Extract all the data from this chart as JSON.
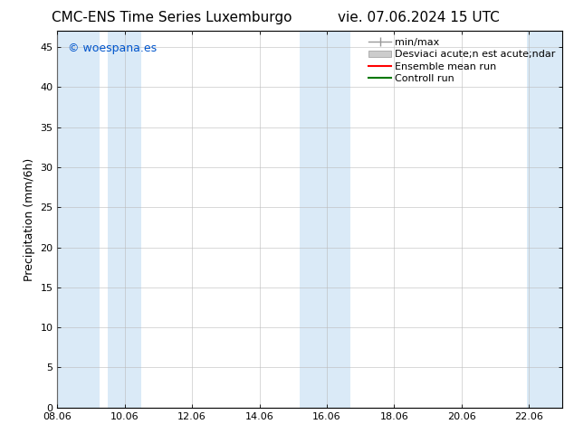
{
  "title_left": "CMC-ENS Time Series Luxemburgo",
  "title_right": "vie. 07.06.2024 15 UTC",
  "ylabel": "Precipitation (mm/6h)",
  "watermark": "© woespana.es",
  "watermark_color": "#0055cc",
  "xlim_left": 8.06,
  "xlim_right": 23.06,
  "ylim_bottom": 0,
  "ylim_top": 47,
  "xticks": [
    8.06,
    10.06,
    12.06,
    14.06,
    16.06,
    18.06,
    20.06,
    22.06
  ],
  "yticks": [
    0,
    5,
    10,
    15,
    20,
    25,
    30,
    35,
    40,
    45
  ],
  "background_color": "#ffffff",
  "plot_bg_color": "#ffffff",
  "shaded_regions": [
    {
      "xmin": 8.06,
      "xmax": 9.3,
      "color": "#daeaf7"
    },
    {
      "xmin": 9.55,
      "xmax": 10.55,
      "color": "#daeaf7"
    },
    {
      "xmin": 15.25,
      "xmax": 16.75,
      "color": "#daeaf7"
    },
    {
      "xmin": 22.0,
      "xmax": 23.06,
      "color": "#daeaf7"
    }
  ],
  "legend_label_minmax": "min/max",
  "legend_label_std": "Desviaci acute;n est acute;ndar",
  "legend_label_ensemble": "Ensemble mean run",
  "legend_label_control": "Controll run",
  "legend_color_minmax": "#999999",
  "legend_color_std": "#cccccc",
  "legend_color_ensemble": "#ff0000",
  "legend_color_control": "#007700",
  "title_fontsize": 11,
  "axis_label_fontsize": 9,
  "tick_fontsize": 8,
  "legend_fontsize": 8
}
